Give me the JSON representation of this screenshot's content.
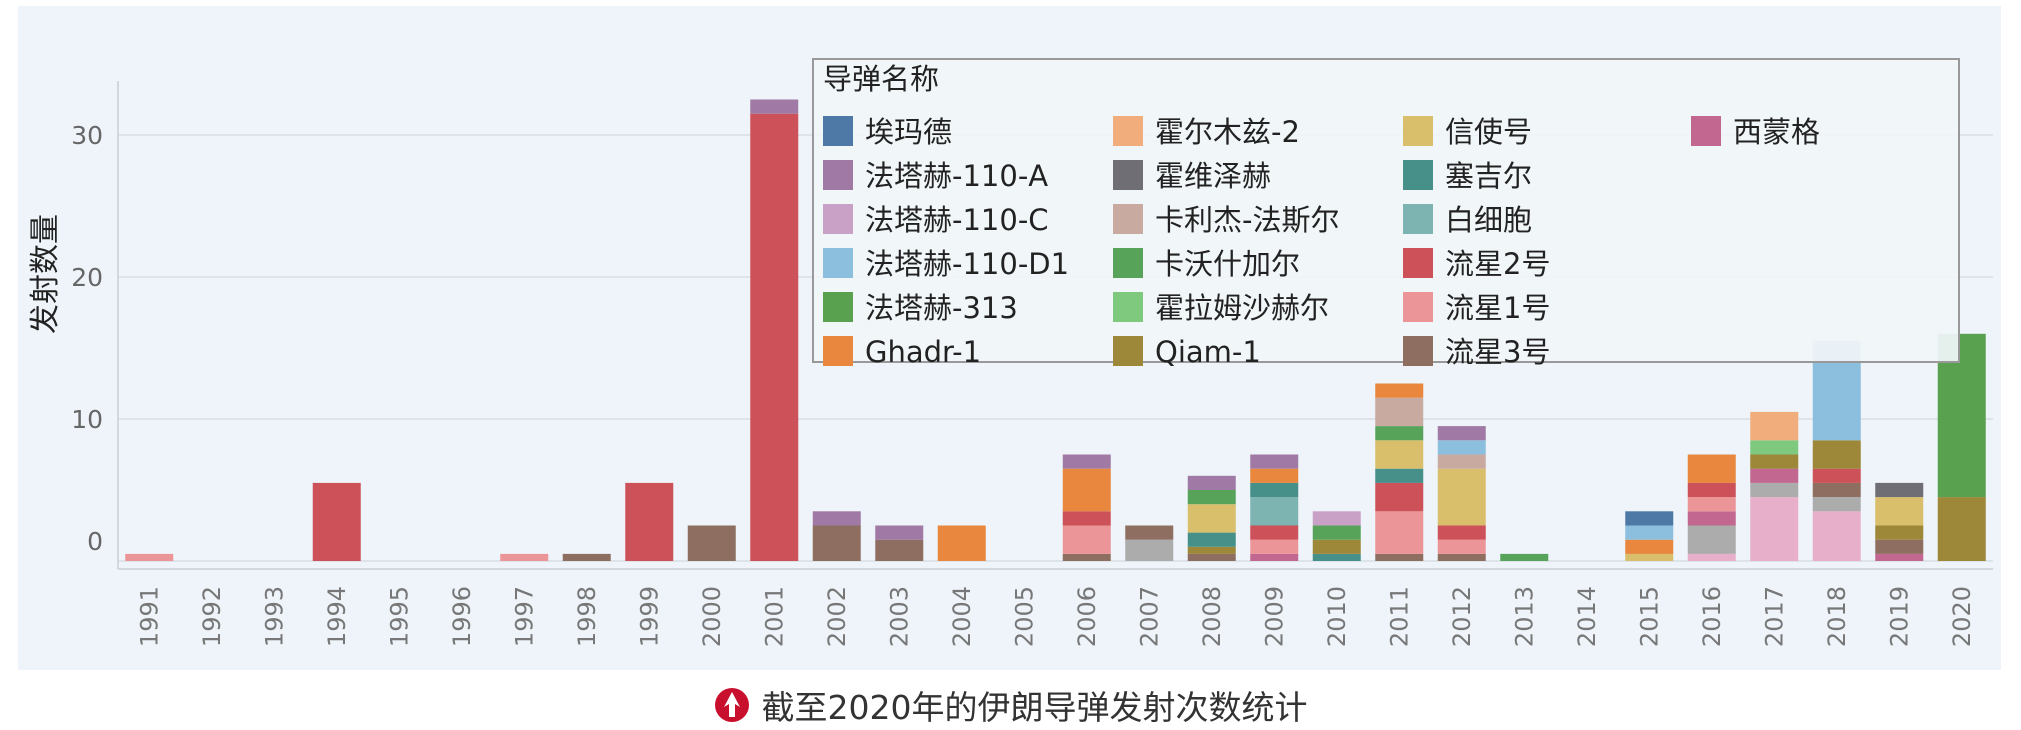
{
  "caption": {
    "text": "截至2020年的伊朗导弹发射次数统计",
    "icon": "red-rocket-logo-icon"
  },
  "colors": {
    "埃玛德": "#4e79a7",
    "法塔赫-110-A": "#a07aa4",
    "法塔赫-110-C": "#c9a0c6",
    "法塔赫-110-D1": "#8cbfdd",
    "法塔赫-313": "#59a14f",
    "Ghadr-1": "#e8873d",
    "霍尔木兹-2": "#f1ad7b",
    "霍维泽赫": "#6f6e74",
    "卡利杰-法斯尔": "#c9aaa1",
    "卡沃什加尔": "#57a35a",
    "霍拉姆沙赫尔": "#7fc97f",
    "Qiam-1": "#9c8838",
    "信使号": "#d9bf6b",
    "塞吉尔": "#469089",
    "白细胞": "#7db3b0",
    "流星2号": "#cc5158",
    "流星1号": "#ec9598",
    "流星3号": "#8f6e62",
    "西蒙格": "#c2678f",
    "unlabeled_pink": "#e7afc9",
    "unlabeled_gray": "#acacac"
  },
  "chart_data": {
    "type": "bar",
    "stacked": true,
    "ylabel": "发射数量",
    "yticks": [
      0,
      10,
      20,
      30
    ],
    "ylim": [
      -1.5,
      34.5
    ],
    "grid": true,
    "legend": {
      "title": "导弹名称",
      "placement": "top-right",
      "items": [
        "埃玛德",
        "法塔赫-110-A",
        "法塔赫-110-C",
        "法塔赫-110-D1",
        "法塔赫-313",
        "Ghadr-1",
        "霍尔木兹-2",
        "霍维泽赫",
        "卡利杰-法斯尔",
        "卡沃什加尔",
        "霍拉姆沙赫尔",
        "Qiam-1",
        "信使号",
        "塞吉尔",
        "白细胞",
        "流星2号",
        "流星1号",
        "流星3号",
        "西蒙格"
      ]
    },
    "categories": [
      "1991",
      "1992",
      "1993",
      "1994",
      "1995",
      "1996",
      "1997",
      "1998",
      "1999",
      "2000",
      "2001",
      "2002",
      "2003",
      "2004",
      "2005",
      "2006",
      "2007",
      "2008",
      "2009",
      "2010",
      "2011",
      "2012",
      "2013",
      "2014",
      "2015",
      "2016",
      "2017",
      "2018",
      "2019",
      "2020"
    ],
    "stacks": [
      [
        {
          "s": "流星1号",
          "v": 0.5
        }
      ],
      [],
      [],
      [
        {
          "s": "流星2号",
          "v": 5.5
        }
      ],
      [],
      [],
      [
        {
          "s": "流星1号",
          "v": 0.5
        }
      ],
      [
        {
          "s": "流星3号",
          "v": 0.5
        }
      ],
      [
        {
          "s": "流星2号",
          "v": 5.5
        }
      ],
      [
        {
          "s": "流星3号",
          "v": 2.5
        }
      ],
      [
        {
          "s": "流星2号",
          "v": 31.5
        },
        {
          "s": "法塔赫-110-A",
          "v": 1
        }
      ],
      [
        {
          "s": "流星3号",
          "v": 2.5
        },
        {
          "s": "法塔赫-110-A",
          "v": 1
        }
      ],
      [
        {
          "s": "流星3号",
          "v": 1.5
        },
        {
          "s": "法塔赫-110-A",
          "v": 1
        }
      ],
      [
        {
          "s": "Ghadr-1",
          "v": 2.5
        }
      ],
      [],
      [
        {
          "s": "流星3号",
          "v": 0.5
        },
        {
          "s": "流星1号",
          "v": 2
        },
        {
          "s": "流星2号",
          "v": 1
        },
        {
          "s": "Ghadr-1",
          "v": 3
        },
        {
          "s": "法塔赫-110-A",
          "v": 1
        }
      ],
      [
        {
          "s": "unlabeled_gray",
          "v": 1.5
        },
        {
          "s": "流星3号",
          "v": 1
        }
      ],
      [
        {
          "s": "流星3号",
          "v": 0.5
        },
        {
          "s": "Qiam-1",
          "v": 0.5
        },
        {
          "s": "塞吉尔",
          "v": 1
        },
        {
          "s": "信使号",
          "v": 2
        },
        {
          "s": "卡沃什加尔",
          "v": 1
        },
        {
          "s": "法塔赫-110-A",
          "v": 1
        }
      ],
      [
        {
          "s": "西蒙格",
          "v": 0.5
        },
        {
          "s": "流星1号",
          "v": 1
        },
        {
          "s": "流星2号",
          "v": 1
        },
        {
          "s": "白细胞",
          "v": 2
        },
        {
          "s": "塞吉尔",
          "v": 1
        },
        {
          "s": "Ghadr-1",
          "v": 1
        },
        {
          "s": "法塔赫-110-A",
          "v": 1
        }
      ],
      [
        {
          "s": "塞吉尔",
          "v": 0.5
        },
        {
          "s": "Qiam-1",
          "v": 1
        },
        {
          "s": "卡沃什加尔",
          "v": 1
        },
        {
          "s": "法塔赫-110-C",
          "v": 1
        }
      ],
      [
        {
          "s": "流星3号",
          "v": 0.5
        },
        {
          "s": "流星1号",
          "v": 3
        },
        {
          "s": "流星2号",
          "v": 2
        },
        {
          "s": "塞吉尔",
          "v": 1
        },
        {
          "s": "信使号",
          "v": 2
        },
        {
          "s": "卡沃什加尔",
          "v": 1
        },
        {
          "s": "卡利杰-法斯尔",
          "v": 2
        },
        {
          "s": "Ghadr-1",
          "v": 1
        }
      ],
      [
        {
          "s": "流星3号",
          "v": 0.5
        },
        {
          "s": "流星1号",
          "v": 1
        },
        {
          "s": "流星2号",
          "v": 1
        },
        {
          "s": "信使号",
          "v": 4
        },
        {
          "s": "卡利杰-法斯尔",
          "v": 1
        },
        {
          "s": "法塔赫-110-D1",
          "v": 1
        },
        {
          "s": "法塔赫-110-A",
          "v": 1
        }
      ],
      [
        {
          "s": "卡沃什加尔",
          "v": 0.5
        }
      ],
      [],
      [
        {
          "s": "信使号",
          "v": 0.5
        },
        {
          "s": "Ghadr-1",
          "v": 1
        },
        {
          "s": "法塔赫-110-D1",
          "v": 1
        },
        {
          "s": "埃玛德",
          "v": 1
        }
      ],
      [
        {
          "s": "unlabeled_pink",
          "v": 0.5
        },
        {
          "s": "unlabeled_gray",
          "v": 2
        },
        {
          "s": "西蒙格",
          "v": 1
        },
        {
          "s": "流星1号",
          "v": 1
        },
        {
          "s": "流星2号",
          "v": 1
        },
        {
          "s": "Ghadr-1",
          "v": 2
        }
      ],
      [
        {
          "s": "unlabeled_pink",
          "v": 4.5
        },
        {
          "s": "unlabeled_gray",
          "v": 1
        },
        {
          "s": "西蒙格",
          "v": 1
        },
        {
          "s": "Qiam-1",
          "v": 1
        },
        {
          "s": "霍拉姆沙赫尔",
          "v": 1
        },
        {
          "s": "霍尔木兹-2",
          "v": 2
        }
      ],
      [
        {
          "s": "unlabeled_pink",
          "v": 3.5
        },
        {
          "s": "unlabeled_gray",
          "v": 1
        },
        {
          "s": "流星3号",
          "v": 1
        },
        {
          "s": "流星2号",
          "v": 1
        },
        {
          "s": "Qiam-1",
          "v": 2
        },
        {
          "s": "法塔赫-110-D1",
          "v": 7
        }
      ],
      [
        {
          "s": "西蒙格",
          "v": 0.5
        },
        {
          "s": "流星3号",
          "v": 1
        },
        {
          "s": "Qiam-1",
          "v": 1
        },
        {
          "s": "信使号",
          "v": 2
        },
        {
          "s": "霍维泽赫",
          "v": 1
        }
      ],
      [
        {
          "s": "Qiam-1",
          "v": 4.5
        },
        {
          "s": "法塔赫-313",
          "v": 11.5
        }
      ]
    ]
  }
}
